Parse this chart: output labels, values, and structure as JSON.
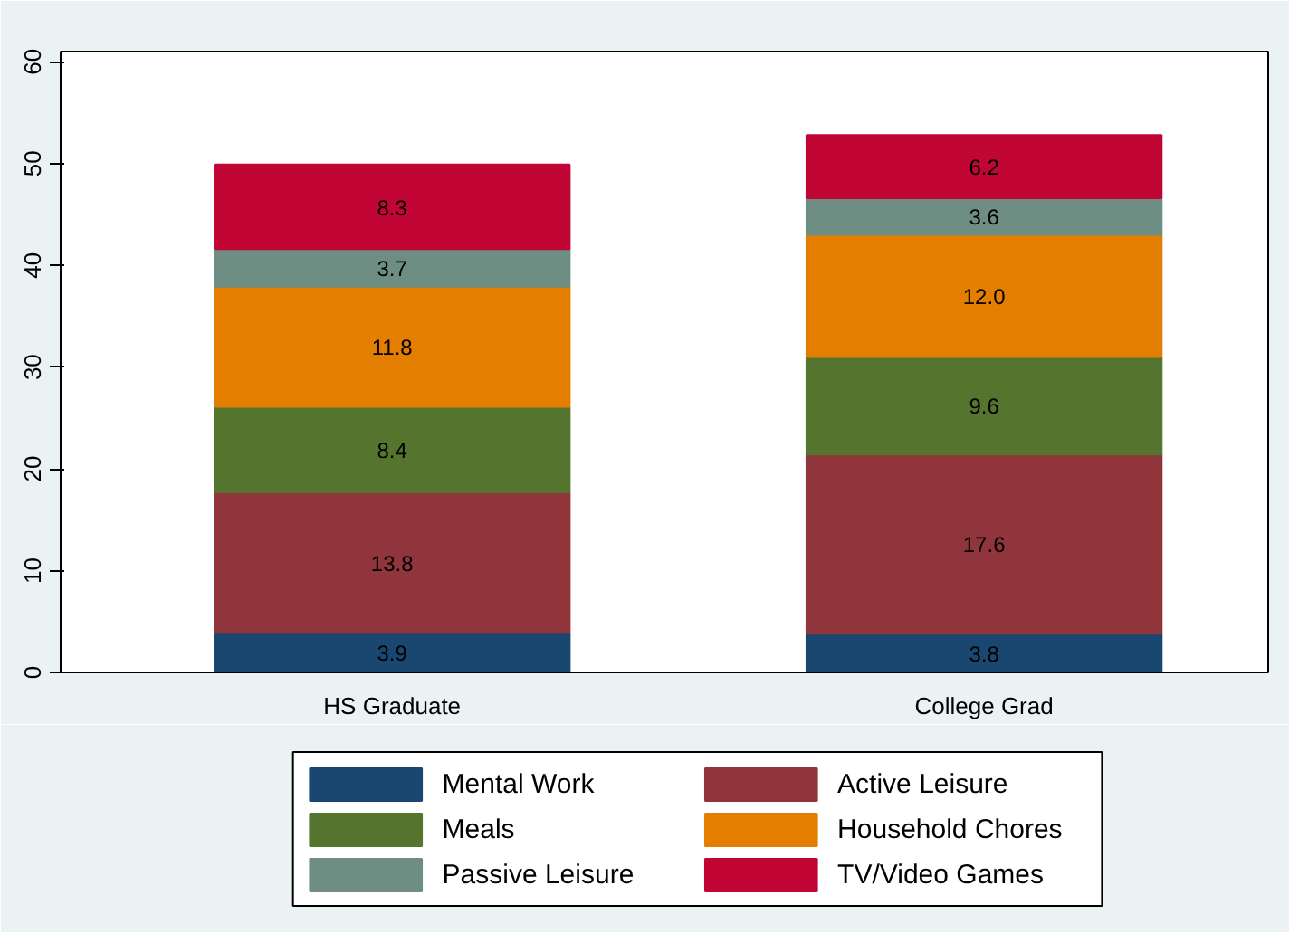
{
  "chart_data": {
    "type": "bar",
    "stacked": true,
    "categories": [
      "HS Graduate",
      "College Grad"
    ],
    "series": [
      {
        "name": "Mental Work",
        "color": "#1a476f",
        "values": [
          3.9,
          3.8
        ],
        "value_labels": [
          "3.9",
          "3.8"
        ]
      },
      {
        "name": "Active Leisure",
        "color": "#90353b",
        "values": [
          13.8,
          17.6
        ],
        "value_labels": [
          "13.8",
          "17.6"
        ]
      },
      {
        "name": "Meals",
        "color": "#55752f",
        "values": [
          8.4,
          9.6
        ],
        "value_labels": [
          "8.4",
          "9.6"
        ]
      },
      {
        "name": "Household Chores",
        "color": "#e37e00",
        "values": [
          11.8,
          12.0
        ],
        "value_labels": [
          "11.8",
          "12.0"
        ]
      },
      {
        "name": "Passive Leisure",
        "color": "#6e8e84",
        "values": [
          3.7,
          3.6
        ],
        "value_labels": [
          "3.7",
          "3.6"
        ]
      },
      {
        "name": "TV/Video Games",
        "color": "#c10534",
        "values": [
          8.3,
          6.2
        ],
        "value_labels": [
          "8.3",
          "6.2"
        ]
      }
    ],
    "ylim": [
      0,
      61
    ],
    "yticks": [
      0,
      10,
      20,
      30,
      40,
      50,
      60
    ],
    "legend": "bottom",
    "grid": false
  }
}
